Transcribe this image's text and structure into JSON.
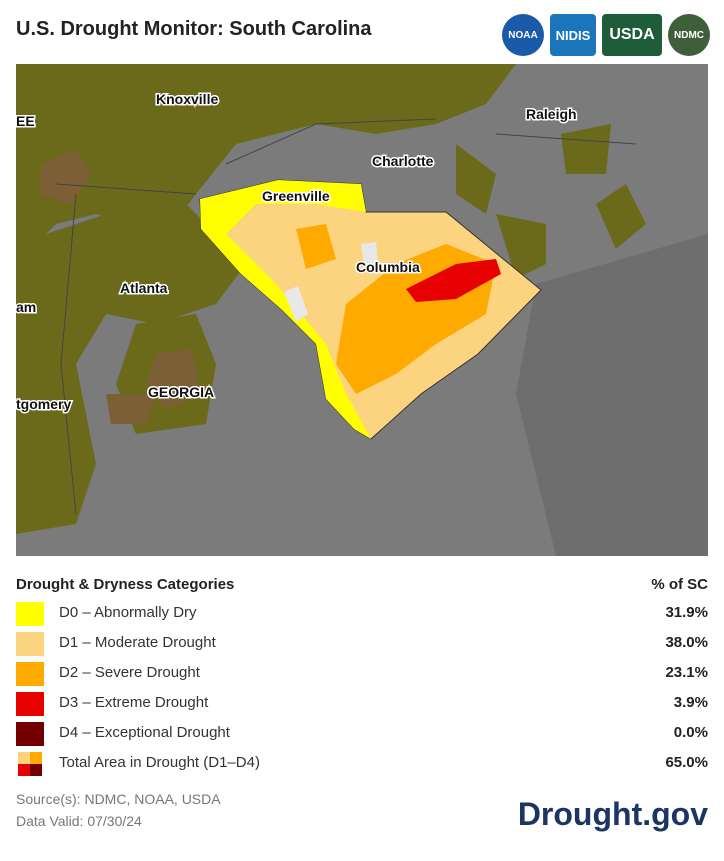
{
  "header": {
    "title": "U.S. Drought Monitor: South Carolina",
    "logos": [
      "NOAA",
      "NIDIS",
      "USDA",
      "NDMC"
    ]
  },
  "map": {
    "labels": [
      "Knoxville",
      "Raleigh",
      "Charlotte",
      "Greenville",
      "Columbia",
      "Atlanta",
      "GEORGIA",
      "EE",
      "am",
      "tgomery"
    ]
  },
  "legend": {
    "title": "Drought & Dryness Categories",
    "value_header": "% of SC",
    "rows": [
      {
        "label": "D0 – Abnormally Dry",
        "value": "31.9%",
        "color": "#ffff00"
      },
      {
        "label": "D1 – Moderate Drought",
        "value": "38.0%",
        "color": "#fcd37f"
      },
      {
        "label": "D2 – Severe Drought",
        "value": "23.1%",
        "color": "#ffaa00"
      },
      {
        "label": "D3 – Extreme Drought",
        "value": "3.9%",
        "color": "#e60000"
      },
      {
        "label": "D4 – Exceptional Drought",
        "value": "0.0%",
        "color": "#730000"
      },
      {
        "label": "Total Area in Drought (D1–D4)",
        "value": "65.0%"
      }
    ]
  },
  "footer": {
    "sources": "Source(s): NDMC, NOAA, USDA",
    "valid": "Data Valid: 07/30/24",
    "brand": "Drought.gov"
  }
}
